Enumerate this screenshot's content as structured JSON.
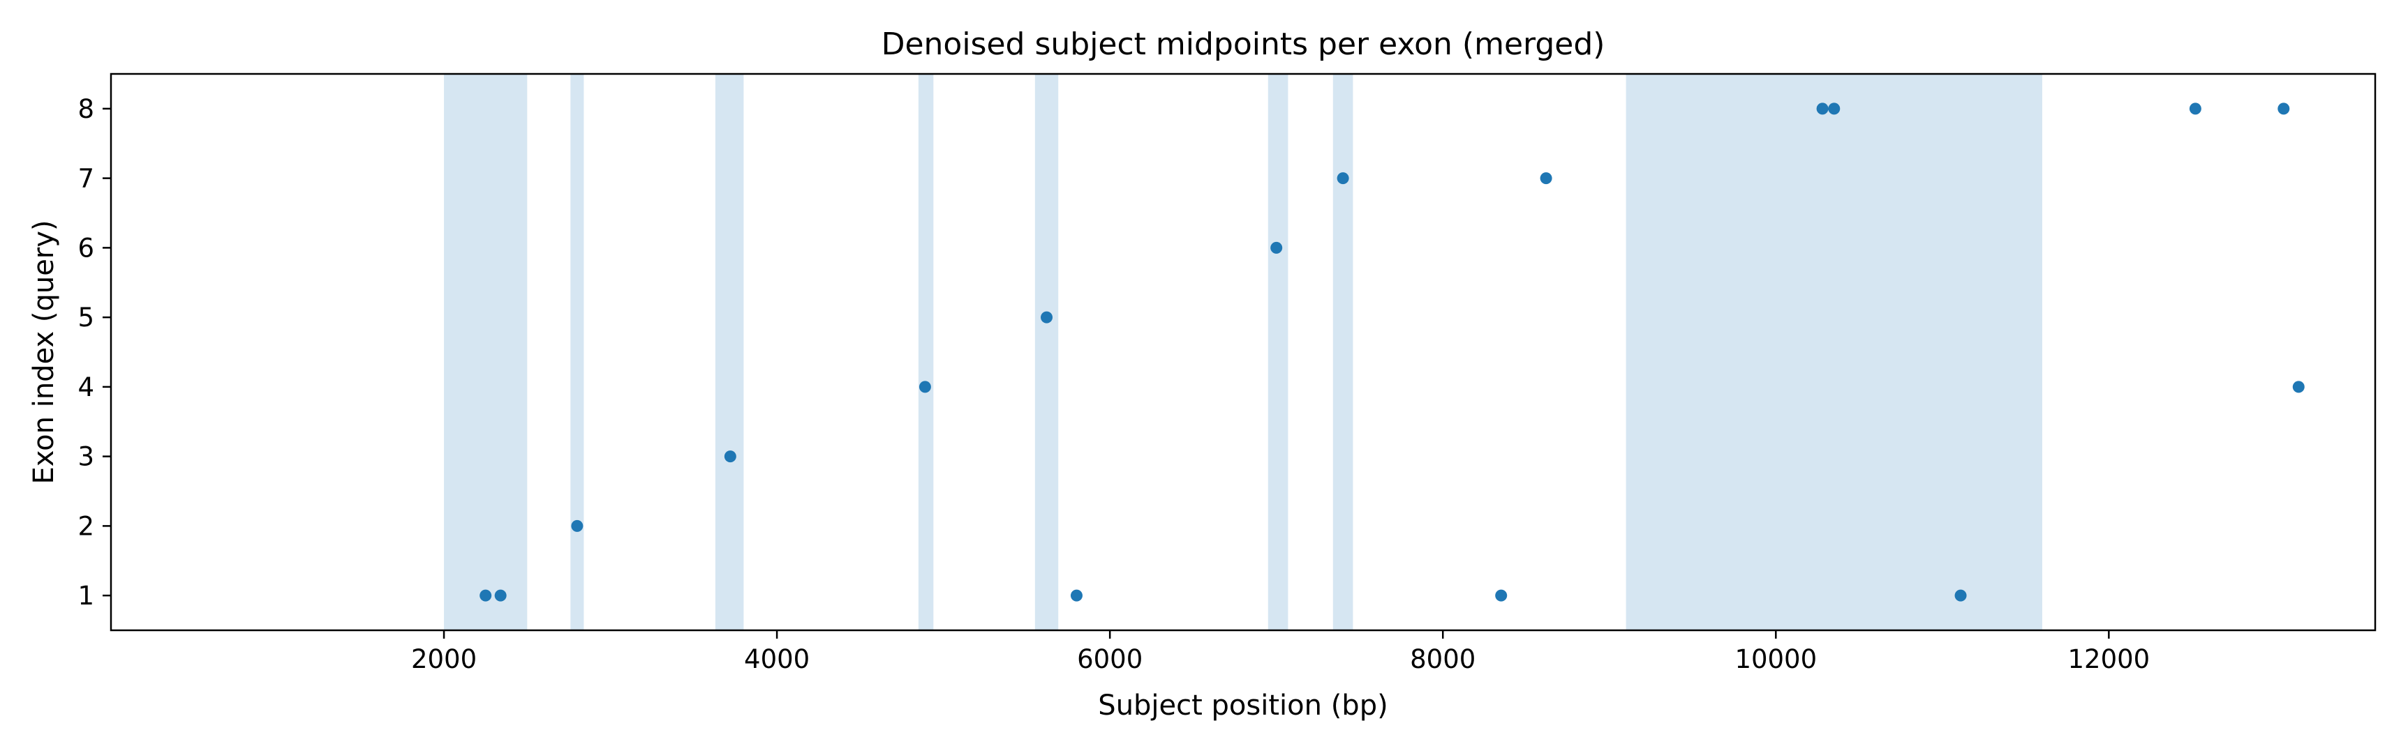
{
  "chart_data": {
    "type": "scatter",
    "title": "Denoised subject midpoints per exon (merged)",
    "xlabel": "Subject position (bp)",
    "ylabel": "Exon index (query)",
    "xlim": [
      0,
      13600
    ],
    "ylim": [
      0.5,
      8.5
    ],
    "xticks": [
      2000,
      4000,
      6000,
      8000,
      10000,
      12000
    ],
    "yticks": [
      1,
      2,
      3,
      4,
      5,
      6,
      7,
      8
    ],
    "grid": false,
    "point_color": "#1f77b4",
    "band_color": "#d6e6f2",
    "bands": [
      [
        2000,
        2500
      ],
      [
        2760,
        2840
      ],
      [
        3630,
        3800
      ],
      [
        4850,
        4940
      ],
      [
        5550,
        5690
      ],
      [
        6950,
        7070
      ],
      [
        7340,
        7460
      ],
      [
        9100,
        11600
      ]
    ],
    "points": [
      {
        "x": 2250,
        "y": 1
      },
      {
        "x": 2340,
        "y": 1
      },
      {
        "x": 2800,
        "y": 2
      },
      {
        "x": 3720,
        "y": 3
      },
      {
        "x": 4890,
        "y": 4
      },
      {
        "x": 5620,
        "y": 5
      },
      {
        "x": 5800,
        "y": 1
      },
      {
        "x": 7000,
        "y": 6
      },
      {
        "x": 7400,
        "y": 7
      },
      {
        "x": 8350,
        "y": 1
      },
      {
        "x": 8620,
        "y": 7
      },
      {
        "x": 10280,
        "y": 8
      },
      {
        "x": 10350,
        "y": 8
      },
      {
        "x": 11110,
        "y": 1
      },
      {
        "x": 12520,
        "y": 8
      },
      {
        "x": 13050,
        "y": 8
      },
      {
        "x": 13140,
        "y": 4
      }
    ]
  }
}
